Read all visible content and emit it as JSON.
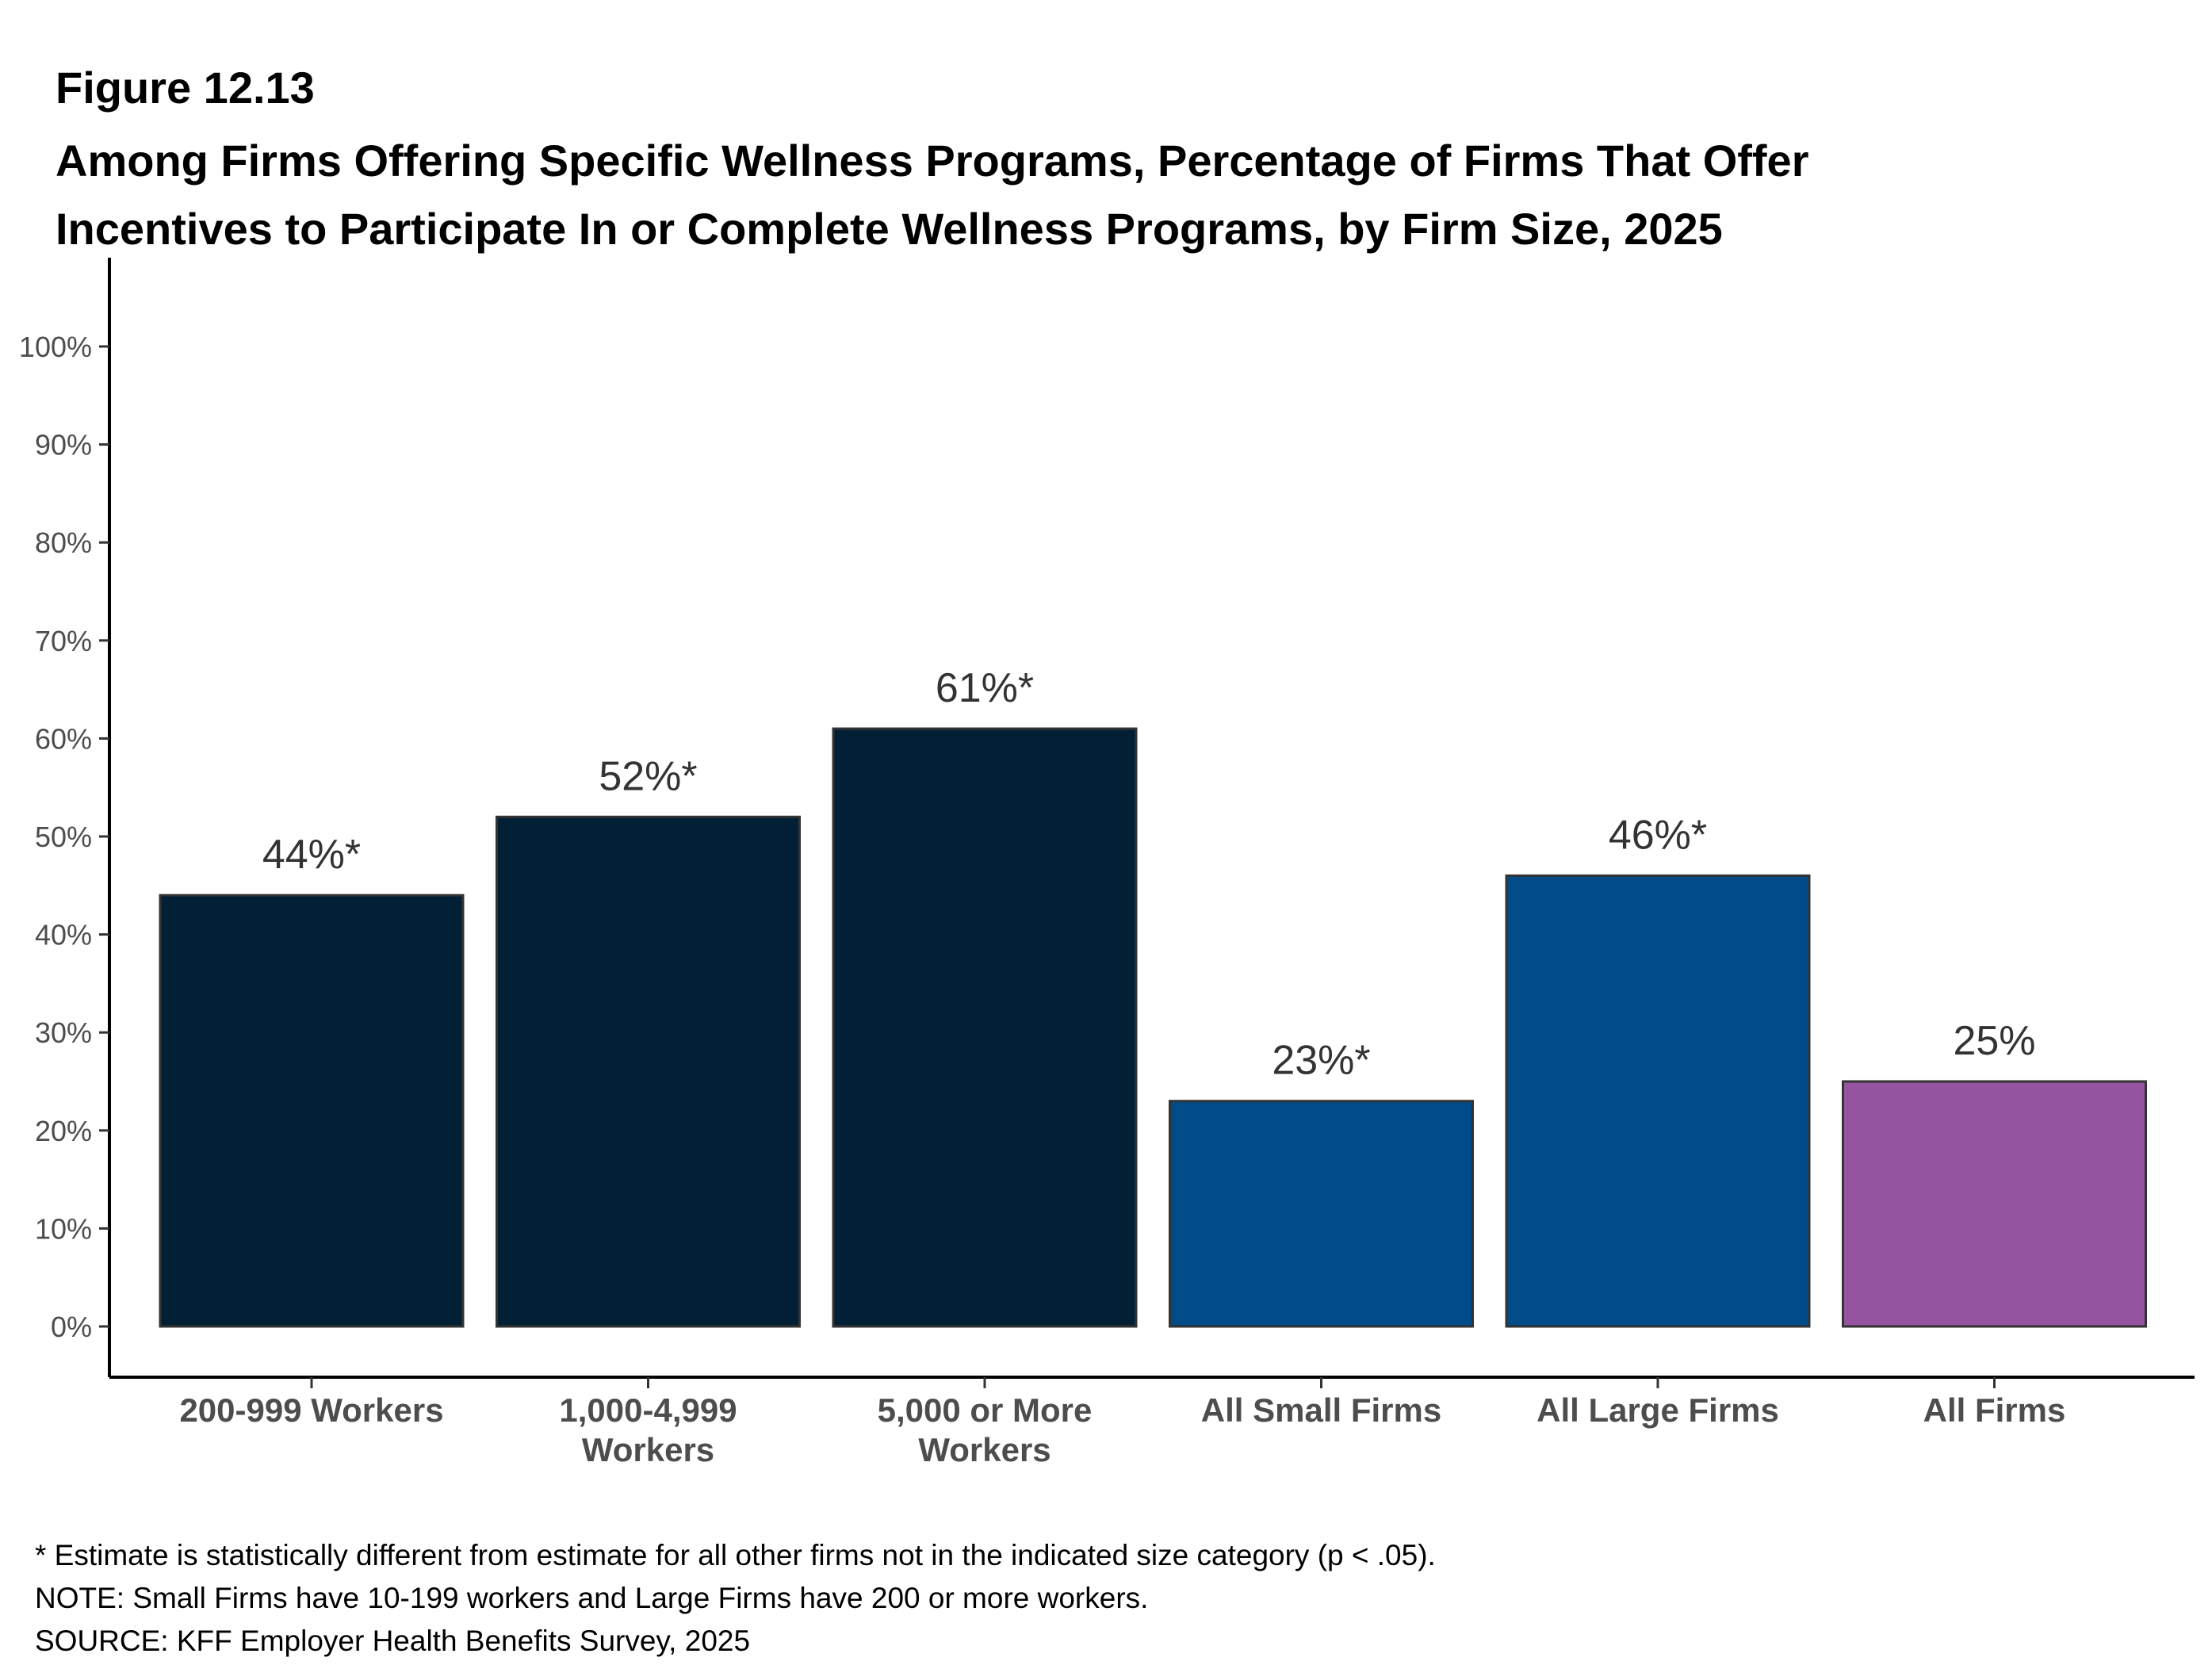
{
  "header": {
    "figure_number": "Figure 12.13",
    "title_line1": "Among Firms Offering Specific Wellness Programs, Percentage of Firms That Offer",
    "title_line2": "Incentives to Participate In or Complete Wellness Programs, by Firm Size, 2025"
  },
  "chart_data": {
    "type": "bar",
    "categories": [
      [
        "200-999 Workers"
      ],
      [
        "1,000-4,999",
        "Workers"
      ],
      [
        "5,000 or More",
        "Workers"
      ],
      [
        "All Small Firms"
      ],
      [
        "All Large Firms"
      ],
      [
        "All Firms"
      ]
    ],
    "values": [
      44,
      52,
      61,
      23,
      46,
      25
    ],
    "data_labels": [
      "44%*",
      "52%*",
      "61%*",
      "23%*",
      "46%*",
      "25%"
    ],
    "colors": [
      "#022035",
      "#022035",
      "#022035",
      "#004b88",
      "#004b88",
      "#9554a0"
    ],
    "ylim": [
      0,
      100
    ],
    "yticks": [
      "0%",
      "10%",
      "20%",
      "30%",
      "40%",
      "50%",
      "60%",
      "70%",
      "80%",
      "90%",
      "100%"
    ],
    "xlabel": "",
    "ylabel": "",
    "grid": false
  },
  "footer": {
    "note1": "* Estimate is statistically different from estimate for all other firms not in the indicated size category (p < .05).",
    "note2": "NOTE: Small Firms have 10-199 workers and Large Firms have 200 or more workers.",
    "source": "SOURCE: KFF Employer Health Benefits Survey, 2025"
  }
}
